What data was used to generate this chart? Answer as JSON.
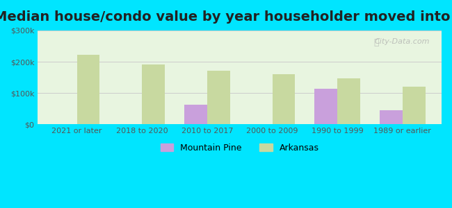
{
  "title": "Median house/condo value by year householder moved into unit",
  "categories": [
    "2021 or later",
    "2018 to 2020",
    "2010 to 2017",
    "2000 to 2009",
    "1990 to 1999",
    "1989 or earlier"
  ],
  "mountain_pine": [
    null,
    null,
    62000,
    null,
    113000,
    45000
  ],
  "arkansas": [
    222000,
    192000,
    172000,
    160000,
    148000,
    120000
  ],
  "mountain_pine_color": "#c9a0dc",
  "arkansas_color": "#c8d9a0",
  "background_outer": "#00e5ff",
  "background_inner_top": "#e8f5e0",
  "background_inner_bottom": "#f5fff5",
  "ylabel_ticks": [
    "$0",
    "$100k",
    "$200k",
    "$300k"
  ],
  "ytick_values": [
    0,
    100000,
    200000,
    300000
  ],
  "ylim": [
    0,
    300000
  ],
  "bar_width": 0.35,
  "title_fontsize": 14,
  "watermark": "City-Data.com"
}
